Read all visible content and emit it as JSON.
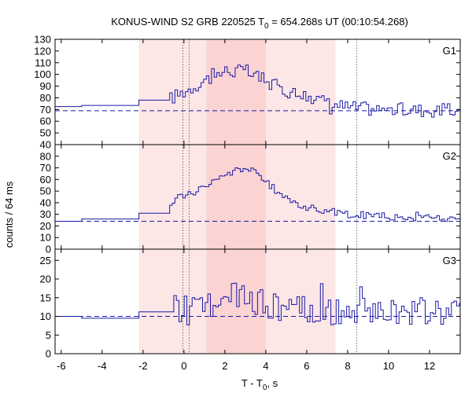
{
  "title_parts": {
    "prefix": "KONUS-WIND S2 GRB 220525 T",
    "subscript": "0",
    "suffix": " = 654.268s UT (00:10:54.268)"
  },
  "ylabel": "counts / 64 ms",
  "xlabel_parts": {
    "prefix": "T - T",
    "subscript": "0",
    "suffix": ", s"
  },
  "chart_data": {
    "type": "line",
    "style": "step",
    "xlim": [
      -6.3,
      13.5
    ],
    "x_ticks": [
      -6,
      -4,
      -2,
      0,
      2,
      4,
      6,
      8,
      10,
      12
    ],
    "colors": {
      "curve": "#1a1aa6",
      "background_line": "#1a1aa6",
      "light_band": "#fde6e6",
      "dark_band": "#fbd3d3",
      "vline": "#555555"
    },
    "shaded_intervals": [
      {
        "from": -2.2,
        "to": 7.4,
        "shade": "light"
      },
      {
        "from": 1.1,
        "to": 4.0,
        "shade": "dark"
      }
    ],
    "vertical_lines": [
      -0.05,
      0.25,
      8.45
    ],
    "panels": [
      {
        "label": "G1",
        "ylim": [
          40,
          130
        ],
        "yticks": [
          40,
          50,
          60,
          70,
          80,
          90,
          100,
          110,
          120,
          130
        ],
        "background": 69,
        "segments": [
          [
            -6.3,
            -5.0,
            72.5
          ],
          [
            -5.0,
            -2.2,
            73.5
          ],
          [
            -2.2,
            -0.7,
            78
          ]
        ],
        "fine": {
          "start": -0.7,
          "step": 0.128,
          "end": 13.5
        },
        "envelope": [
          [
            -0.7,
            79
          ],
          [
            0.3,
            88
          ],
          [
            1.0,
            95
          ],
          [
            2.0,
            103
          ],
          [
            3.0,
            103
          ],
          [
            4.0,
            94
          ],
          [
            5.0,
            86
          ],
          [
            6.0,
            82
          ],
          [
            7.0,
            76
          ],
          [
            8.0,
            72
          ],
          [
            10.0,
            70
          ],
          [
            13.5,
            69
          ]
        ],
        "noise": 6
      },
      {
        "label": "G2",
        "ylim": [
          0,
          90
        ],
        "yticks": [
          0,
          10,
          20,
          30,
          40,
          50,
          60,
          70,
          80
        ],
        "background": 24,
        "segments": [
          [
            -6.3,
            -5.0,
            24
          ],
          [
            -5.0,
            -2.2,
            26
          ],
          [
            -2.2,
            -0.7,
            31
          ]
        ],
        "fine": {
          "start": -0.7,
          "step": 0.128,
          "end": 13.5
        },
        "envelope": [
          [
            -0.7,
            33
          ],
          [
            -0.4,
            44
          ],
          [
            0.5,
            50
          ],
          [
            1.5,
            58
          ],
          [
            2.5,
            68
          ],
          [
            3.0,
            70
          ],
          [
            3.5,
            66
          ],
          [
            4.0,
            58
          ],
          [
            5.0,
            43
          ],
          [
            6.0,
            36
          ],
          [
            7.0,
            33
          ],
          [
            8.0,
            30
          ],
          [
            10.0,
            28
          ],
          [
            13.5,
            26
          ]
        ],
        "noise": 3
      },
      {
        "label": "G3",
        "ylim": [
          0,
          28
        ],
        "yticks": [
          0,
          5,
          10,
          15,
          20,
          25
        ],
        "background": 10,
        "segments": [
          [
            -6.3,
            -5.0,
            10
          ],
          [
            -5.0,
            -2.2,
            9.5
          ],
          [
            -2.2,
            -0.5,
            11.2
          ]
        ],
        "fine": {
          "start": -0.5,
          "step": 0.128,
          "end": 13.5
        },
        "envelope": [
          [
            -0.5,
            12
          ],
          [
            1.0,
            13
          ],
          [
            2.5,
            15
          ],
          [
            3.5,
            14
          ],
          [
            5.0,
            12
          ],
          [
            7.0,
            11
          ],
          [
            13.5,
            11
          ]
        ],
        "noise": 4
      }
    ]
  }
}
